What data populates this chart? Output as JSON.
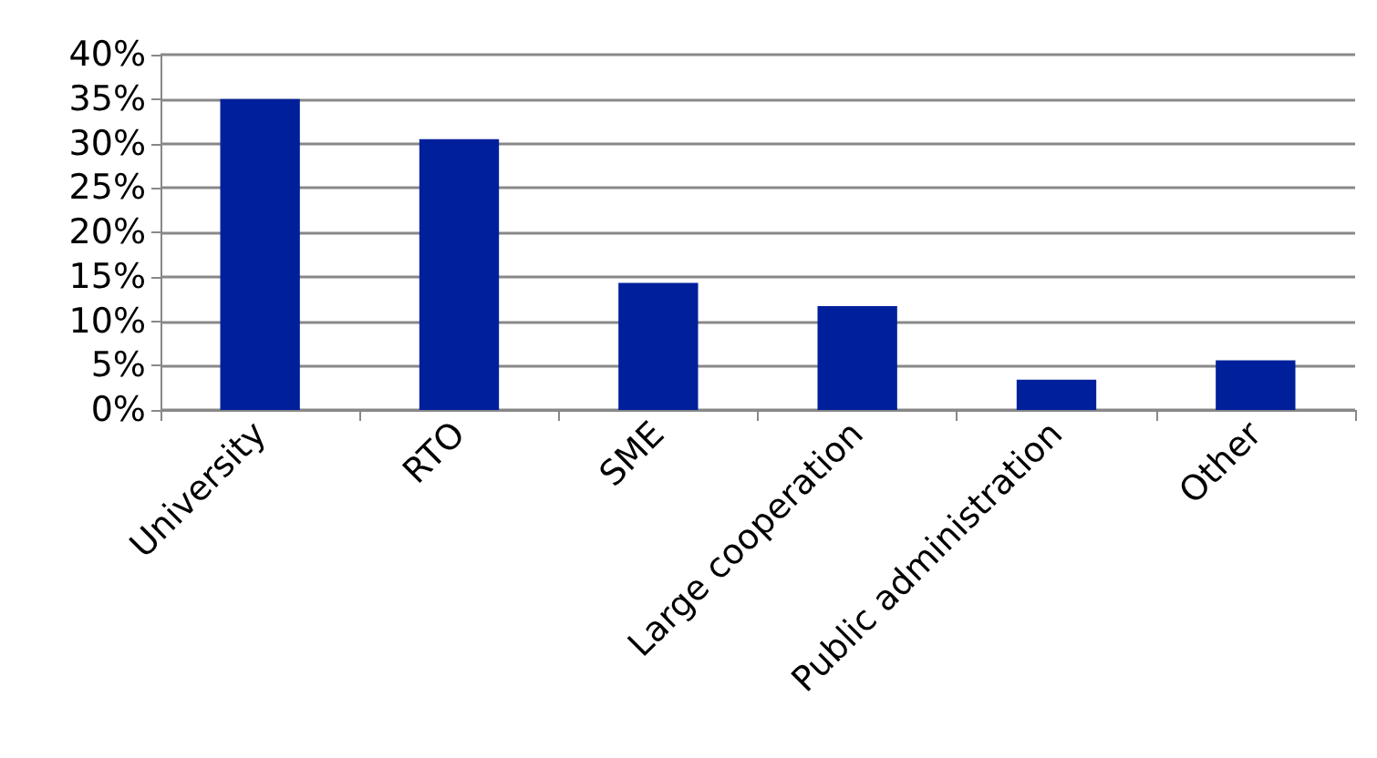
{
  "chart_data": {
    "type": "bar",
    "categories": [
      "University",
      "RTO",
      "SME",
      "Large cooperation",
      "Public administration",
      "Other"
    ],
    "values": [
      35,
      30.5,
      14.3,
      11.7,
      3.4,
      5.6
    ],
    "color": "#00209b",
    "ylim": [
      0,
      40
    ],
    "yticks": [
      {
        "value": 0,
        "label": "0%"
      },
      {
        "value": 5,
        "label": "5%"
      },
      {
        "value": 10,
        "label": "10%"
      },
      {
        "value": 15,
        "label": "15%"
      },
      {
        "value": 20,
        "label": "20%"
      },
      {
        "value": 25,
        "label": "25%"
      },
      {
        "value": 30,
        "label": "30%"
      },
      {
        "value": 35,
        "label": "35%"
      },
      {
        "value": 40,
        "label": "40%"
      }
    ],
    "grid": "y"
  }
}
